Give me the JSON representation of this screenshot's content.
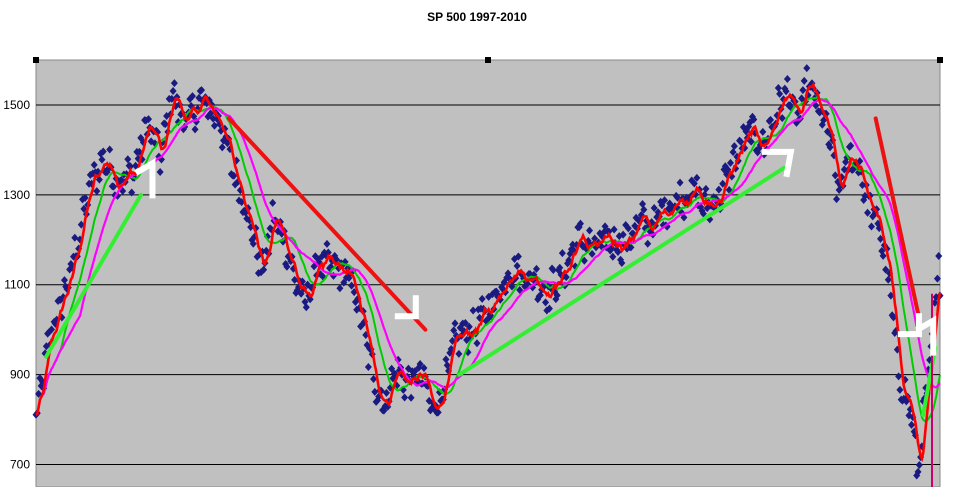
{
  "chart_data": {
    "type": "line",
    "title": "SP 500 1997-2010",
    "xlabel": "",
    "ylabel": "",
    "ylim": [
      650,
      1600
    ],
    "yticks": [
      700,
      900,
      1100,
      1300,
      1500
    ],
    "ytick_labels": [
      "700",
      "900",
      "1100",
      "1300",
      "1500"
    ],
    "grid": true,
    "x_range": [
      1997.0,
      2010.35
    ],
    "colors": {
      "plot_bg": "#c0c0c0",
      "grid": "#000000",
      "price_markers": "#1a1a80",
      "ma_short": "#ff0000",
      "ma_medium": "#00cc00",
      "ma_long": "#ff00ff",
      "trend_up": "#33ee33",
      "trend_down": "#ee1111",
      "marker_line": "#cc0066",
      "annotations": "#ffffff"
    },
    "price_key_points": [
      {
        "x": 1997.0,
        "y": 800
      },
      {
        "x": 1997.2,
        "y": 980
      },
      {
        "x": 1997.5,
        "y": 1120
      },
      {
        "x": 1997.8,
        "y": 1320
      },
      {
        "x": 1998.0,
        "y": 1380
      },
      {
        "x": 1998.2,
        "y": 1330
      },
      {
        "x": 1998.45,
        "y": 1350
      },
      {
        "x": 1998.65,
        "y": 1460
      },
      {
        "x": 1998.85,
        "y": 1380
      },
      {
        "x": 1999.0,
        "y": 1530
      },
      {
        "x": 1999.2,
        "y": 1460
      },
      {
        "x": 1999.45,
        "y": 1510
      },
      {
        "x": 1999.7,
        "y": 1470
      },
      {
        "x": 1999.9,
        "y": 1360
      },
      {
        "x": 2000.05,
        "y": 1300
      },
      {
        "x": 2000.2,
        "y": 1210
      },
      {
        "x": 2000.35,
        "y": 1130
      },
      {
        "x": 2000.5,
        "y": 1250
      },
      {
        "x": 2000.65,
        "y": 1210
      },
      {
        "x": 2000.85,
        "y": 1100
      },
      {
        "x": 2001.0,
        "y": 1060
      },
      {
        "x": 2001.15,
        "y": 1150
      },
      {
        "x": 2001.35,
        "y": 1140
      },
      {
        "x": 2001.55,
        "y": 1130
      },
      {
        "x": 2001.7,
        "y": 1090
      },
      {
        "x": 2001.85,
        "y": 990
      },
      {
        "x": 2002.0,
        "y": 890
      },
      {
        "x": 2002.15,
        "y": 830
      },
      {
        "x": 2002.3,
        "y": 910
      },
      {
        "x": 2002.5,
        "y": 880
      },
      {
        "x": 2002.7,
        "y": 900
      },
      {
        "x": 2002.85,
        "y": 820
      },
      {
        "x": 2003.0,
        "y": 860
      },
      {
        "x": 2003.2,
        "y": 980
      },
      {
        "x": 2003.45,
        "y": 1000
      },
      {
        "x": 2003.7,
        "y": 1050
      },
      {
        "x": 2003.9,
        "y": 1100
      },
      {
        "x": 2004.0,
        "y": 1140
      },
      {
        "x": 2004.2,
        "y": 1120
      },
      {
        "x": 2004.4,
        "y": 1110
      },
      {
        "x": 2004.55,
        "y": 1080
      },
      {
        "x": 2004.8,
        "y": 1130
      },
      {
        "x": 2005.0,
        "y": 1200
      },
      {
        "x": 2005.25,
        "y": 1180
      },
      {
        "x": 2005.45,
        "y": 1200
      },
      {
        "x": 2005.7,
        "y": 1190
      },
      {
        "x": 2005.9,
        "y": 1240
      },
      {
        "x": 2006.1,
        "y": 1230
      },
      {
        "x": 2006.3,
        "y": 1270
      },
      {
        "x": 2006.5,
        "y": 1290
      },
      {
        "x": 2006.7,
        "y": 1310
      },
      {
        "x": 2006.9,
        "y": 1270
      },
      {
        "x": 2007.1,
        "y": 1300
      },
      {
        "x": 2007.35,
        "y": 1390
      },
      {
        "x": 2007.55,
        "y": 1440
      },
      {
        "x": 2007.75,
        "y": 1410
      },
      {
        "x": 2007.95,
        "y": 1490
      },
      {
        "x": 2008.1,
        "y": 1530
      },
      {
        "x": 2008.25,
        "y": 1460
      },
      {
        "x": 2008.4,
        "y": 1550
      },
      {
        "x": 2008.55,
        "y": 1490
      },
      {
        "x": 2008.7,
        "y": 1440
      },
      {
        "x": 2008.85,
        "y": 1300
      },
      {
        "x": 2009.0,
        "y": 1380
      },
      {
        "x": 2009.15,
        "y": 1370
      },
      {
        "x": 2009.3,
        "y": 1270
      },
      {
        "x": 2009.45,
        "y": 1230
      },
      {
        "x": 2009.6,
        "y": 1110
      },
      {
        "x": 2009.72,
        "y": 920
      },
      {
        "x": 2009.82,
        "y": 860
      },
      {
        "x": 2009.92,
        "y": 820
      },
      {
        "x": 2010.02,
        "y": 680
      },
      {
        "x": 2010.08,
        "y": 760
      },
      {
        "x": 2010.15,
        "y": 870
      },
      {
        "x": 2010.22,
        "y": 930
      },
      {
        "x": 2010.28,
        "y": 1050
      },
      {
        "x": 2010.33,
        "y": 1140
      },
      {
        "x": 2010.35,
        "y": 1100
      }
    ],
    "trend_lines": [
      {
        "kind": "up",
        "x1": 1997.15,
        "y1": 940,
        "x2": 1998.55,
        "y2": 1300
      },
      {
        "kind": "down",
        "x1": 1999.85,
        "y1": 1470,
        "x2": 2002.75,
        "y2": 1000
      },
      {
        "kind": "up",
        "x1": 2003.25,
        "y1": 900,
        "x2": 2008.05,
        "y2": 1360
      },
      {
        "kind": "down",
        "x1": 2009.4,
        "y1": 1470,
        "x2": 2010.05,
        "y2": 1020
      },
      {
        "kind": "up",
        "x1": 2010.1,
        "y1": 810,
        "x2": 2010.28,
        "y2": 960
      }
    ],
    "vertical_marker_x": 2010.35,
    "annotation_marks": [
      {
        "x": 1998.72,
        "y": 1330,
        "kind": "1"
      },
      {
        "x": 2002.55,
        "y": 1030,
        "kind": "corner"
      },
      {
        "x": 2008.0,
        "y": 1360,
        "kind": "7"
      },
      {
        "x": 2009.98,
        "y": 990,
        "kind": "corner"
      },
      {
        "x": 2010.25,
        "y": 980,
        "kind": "1"
      }
    ]
  }
}
